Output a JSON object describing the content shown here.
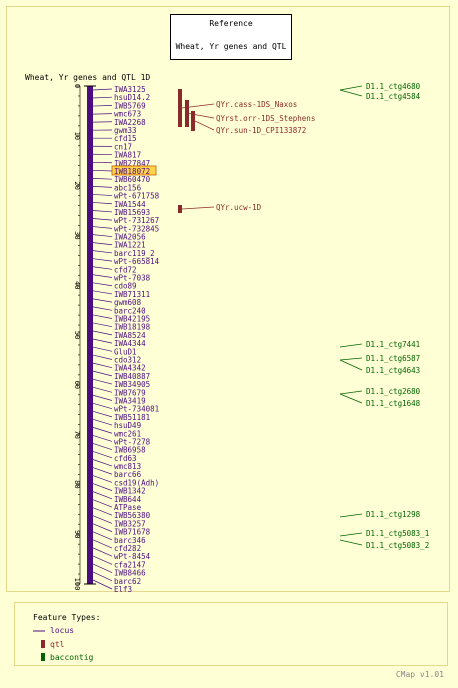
{
  "reference": {
    "label": "Reference",
    "map_name": "Wheat, Yr genes and QTL"
  },
  "map_title": "Wheat, Yr genes and QTL 1D",
  "scale": {
    "ticks": [
      "0",
      "10",
      "20",
      "30",
      "40",
      "50",
      "60",
      "70",
      "80",
      "90",
      "100"
    ]
  },
  "loci": [
    "IWA3125",
    "hsuD14.2",
    "IWB5769",
    "wmc673",
    "IWA2268",
    "gwm33",
    "cfd15",
    "cn17",
    "IWA817",
    "IWB27847",
    "IWB18072",
    "IWB60470",
    "abc156",
    "wPt-671758",
    "IWA1544",
    "IWB15693",
    "wPt-731267",
    "wPt-732845",
    "IWA2056",
    "IWA1221",
    "barc119_2",
    "wPt-665814",
    "cfd72",
    "wPt-7038",
    "cdo89",
    "IWB71311",
    "gwm608",
    "barc240",
    "IWB42195",
    "IWB18198",
    "IWA8524",
    "IWA4344",
    "GluD1",
    "cdo312",
    "IWA4342",
    "IWB40887",
    "IWB34905",
    "IWB7679",
    "IWA3419",
    "wPt-734081",
    "IWB51181",
    "hsuD49",
    "wmc261",
    "wPt-7278",
    "IWB6958",
    "cfd63",
    "wmc813",
    "barc66",
    "csd19(Adh)",
    "IWB1342",
    "IWB644",
    "ATPase",
    "IWB56380",
    "IWB3257",
    "IWB71678",
    "barc346",
    "cfd282",
    "wPt-8454",
    "cfa2147",
    "IWB8466",
    "barc62",
    "Elf3"
  ],
  "highlighted_locus": "IWB18072",
  "qtls": [
    "QYr.cass-1DS_Naxos",
    "QYrst.orr-1DS_Stephens",
    "QYr.sun-1D_CPI133872",
    "QYr.ucw-1D"
  ],
  "contigs": [
    "D1.1_ctg4680",
    "D1.1_ctg4584",
    "D1.1_ctg7441",
    "D1.1_ctg6587",
    "D1.1_ctg4643",
    "D1.1_ctg2680",
    "D1.1_ctg1648",
    "D1.1_ctg1298",
    "D1.1_ctg5083_1",
    "D1.1_ctg5083_2"
  ],
  "legend": {
    "title": "Feature Types:",
    "items": [
      "locus",
      "qtl",
      "baccontig"
    ]
  },
  "footer": "CMap v1.01",
  "colors": {
    "locus": "#4b0d82",
    "qtl": "#8b2a2a",
    "contig": "#006400",
    "chromosome": "#4b0d82",
    "highlight": "#ffd24a"
  }
}
